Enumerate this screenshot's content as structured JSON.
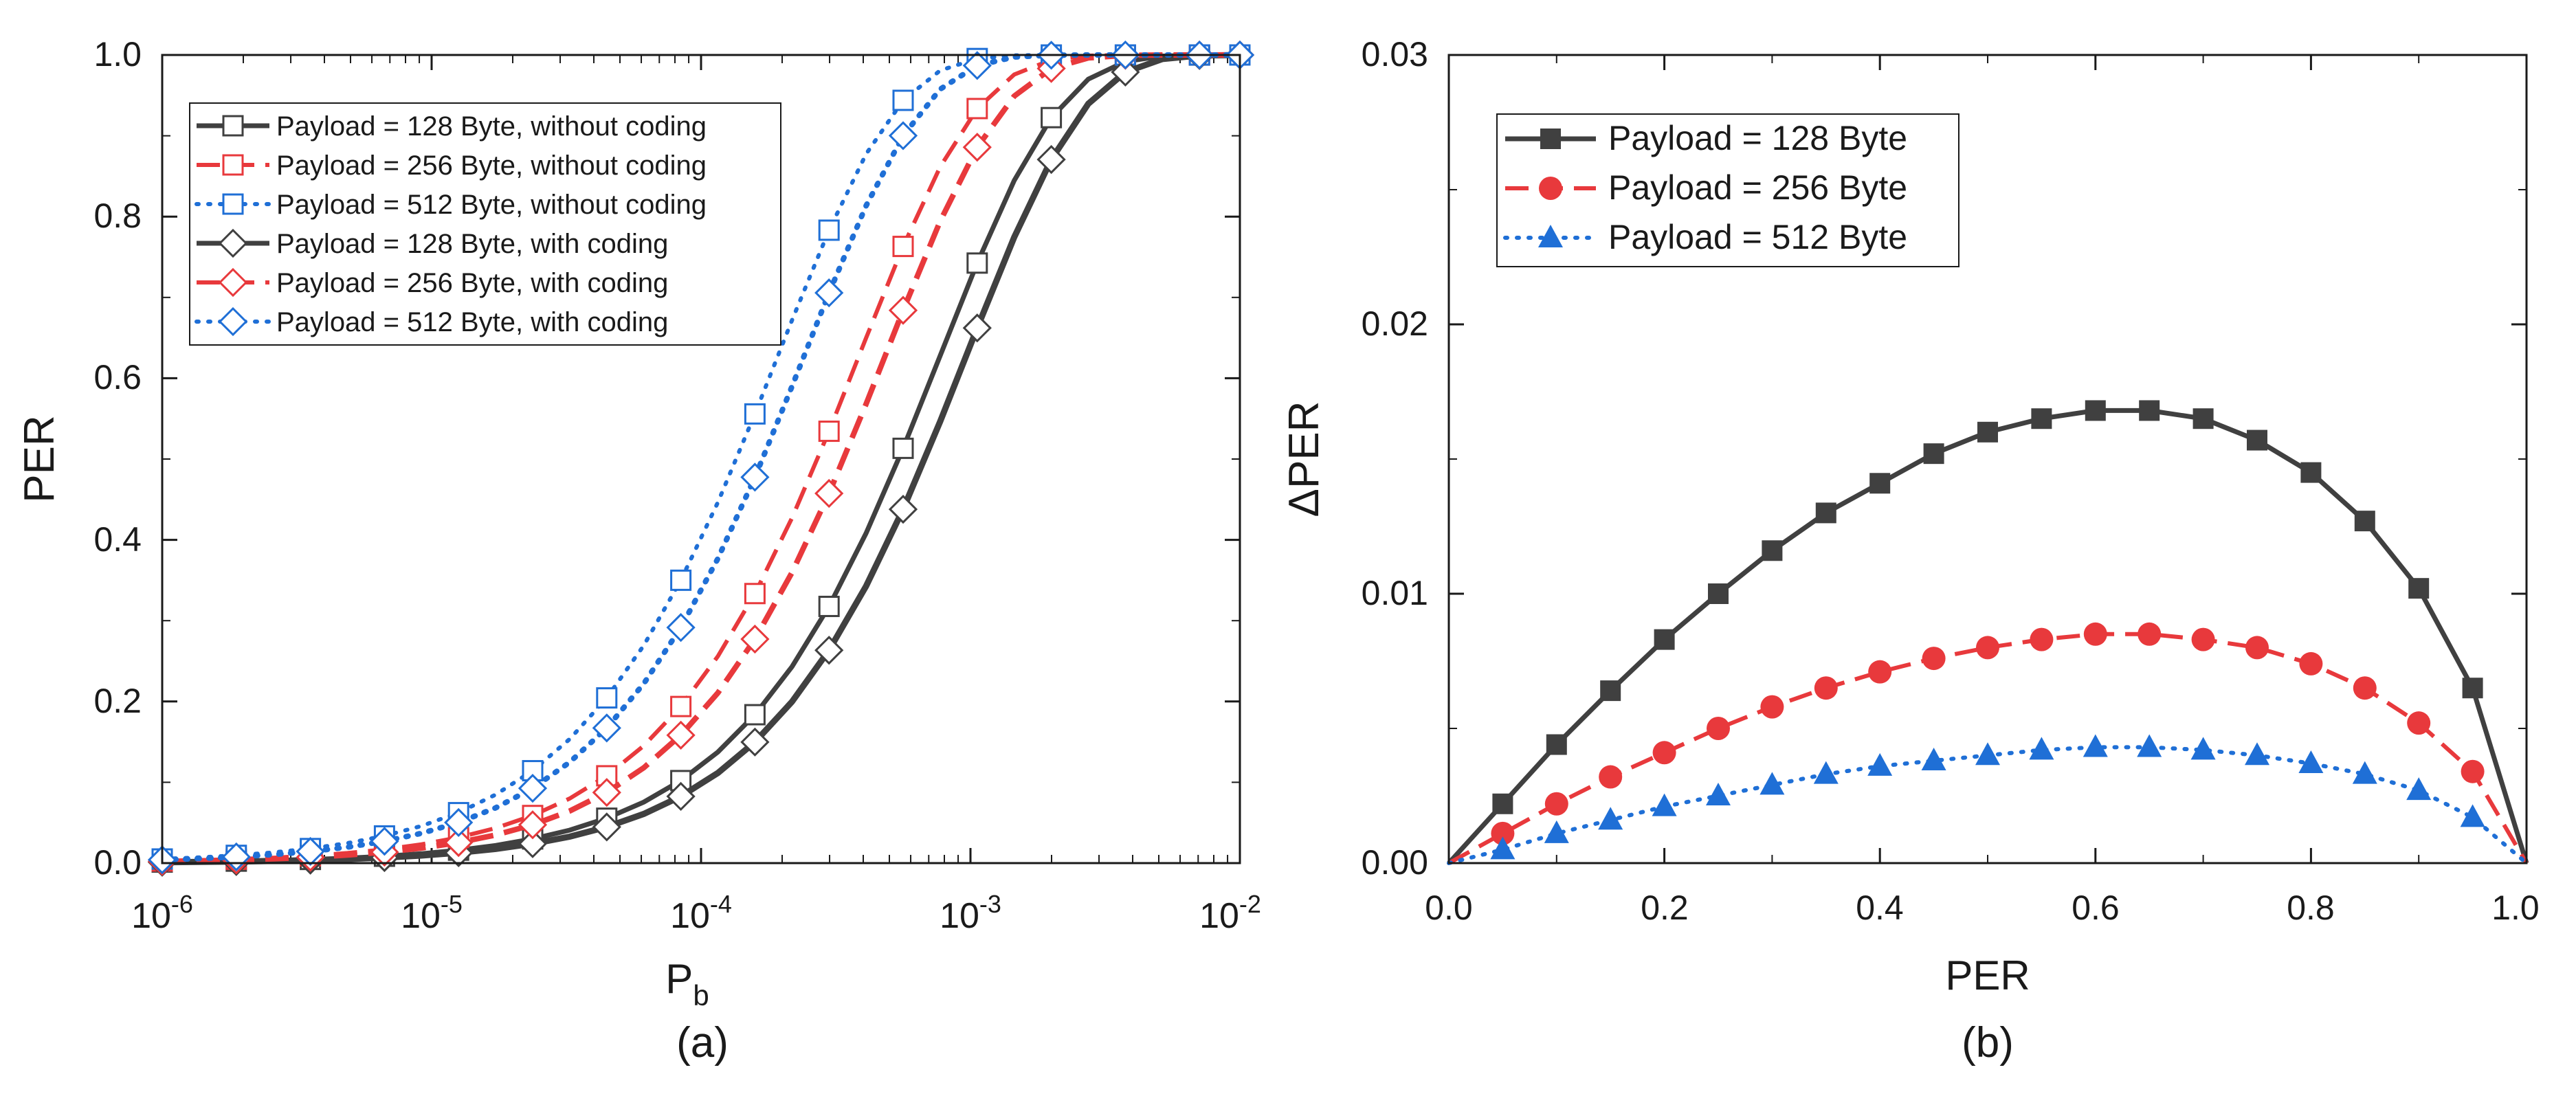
{
  "chart_data": [
    {
      "panel": "a",
      "caption": "(a)",
      "type": "line",
      "x_scale": "log",
      "xlabel_main": "P",
      "xlabel_sub": "b",
      "ylabel": "PER",
      "xlim": [
        1e-06,
        0.01
      ],
      "ylim": [
        0,
        1.0
      ],
      "x_ticks": [
        {
          "base": "10",
          "exp": "-6"
        },
        {
          "base": "10",
          "exp": "-5"
        },
        {
          "base": "10",
          "exp": "-4"
        },
        {
          "base": "10",
          "exp": "-3"
        },
        {
          "base": "10",
          "exp": "-2"
        }
      ],
      "y_tick_labels": [
        "0.0",
        "0.2",
        "0.4",
        "0.6",
        "0.8",
        "1.0"
      ],
      "legend_position": "top-left",
      "series": [
        {
          "name": "Payload = 128 Byte, without coding",
          "payload": 128,
          "coding": false,
          "color": "#404040",
          "line": "solid",
          "marker": "square"
        },
        {
          "name": "Payload = 256 Byte, without coding",
          "payload": 256,
          "coding": false,
          "color": "#e8393c",
          "line": "dash",
          "marker": "square"
        },
        {
          "name": "Payload = 512 Byte, without coding",
          "payload": 512,
          "coding": false,
          "color": "#1f6fd6",
          "line": "dot",
          "marker": "square"
        },
        {
          "name": "Payload = 128 Byte, with coding",
          "payload": 128,
          "coding": true,
          "color": "#404040",
          "line": "solid",
          "marker": "diamond"
        },
        {
          "name": "Payload = 256 Byte, with coding",
          "payload": 256,
          "coding": true,
          "color": "#e8393c",
          "line": "dash",
          "marker": "diamond"
        },
        {
          "name": "Payload = 512 Byte, with coding",
          "payload": 512,
          "coding": true,
          "color": "#1f6fd6",
          "line": "dot",
          "marker": "diamond"
        }
      ]
    },
    {
      "panel": "b",
      "caption": "(b)",
      "type": "line",
      "xlabel": "PER",
      "ylabel": "ΔPER",
      "xlim": [
        0,
        1.0
      ],
      "ylim": [
        0,
        0.03
      ],
      "x_tick_labels": [
        "0.0",
        "0.2",
        "0.4",
        "0.6",
        "0.8",
        "1.0"
      ],
      "y_tick_labels": [
        "0.00",
        "0.01",
        "0.02",
        "0.03"
      ],
      "legend_position": "top-left",
      "x": [
        0,
        0.05,
        0.1,
        0.15,
        0.2,
        0.25,
        0.3,
        0.35,
        0.4,
        0.45,
        0.5,
        0.55,
        0.6,
        0.65,
        0.7,
        0.75,
        0.8,
        0.85,
        0.9,
        0.95,
        1.0
      ],
      "series": [
        {
          "name": "Payload = 128 Byte",
          "color": "#404040",
          "line": "solid",
          "marker": "square",
          "values": [
            0,
            0.0022,
            0.0044,
            0.0064,
            0.0083,
            0.01,
            0.0116,
            0.013,
            0.0141,
            0.0152,
            0.016,
            0.0165,
            0.0168,
            0.0168,
            0.0165,
            0.0157,
            0.0145,
            0.0127,
            0.0102,
            0.0065,
            0
          ]
        },
        {
          "name": "Payload = 256 Byte",
          "color": "#e8393c",
          "line": "dash",
          "marker": "circle",
          "values": [
            0,
            0.0011,
            0.0022,
            0.0032,
            0.0041,
            0.005,
            0.0058,
            0.0065,
            0.0071,
            0.0076,
            0.008,
            0.0083,
            0.0085,
            0.0085,
            0.0083,
            0.008,
            0.0074,
            0.0065,
            0.0052,
            0.0034,
            0
          ]
        },
        {
          "name": "Payload = 512 Byte",
          "color": "#1f6fd6",
          "line": "dot",
          "marker": "triangle",
          "values": [
            0,
            0.0005,
            0.0011,
            0.0016,
            0.0021,
            0.0025,
            0.0029,
            0.0033,
            0.0036,
            0.0038,
            0.004,
            0.0042,
            0.0043,
            0.0043,
            0.0042,
            0.004,
            0.0037,
            0.0033,
            0.0027,
            0.0017,
            0
          ]
        }
      ]
    }
  ]
}
